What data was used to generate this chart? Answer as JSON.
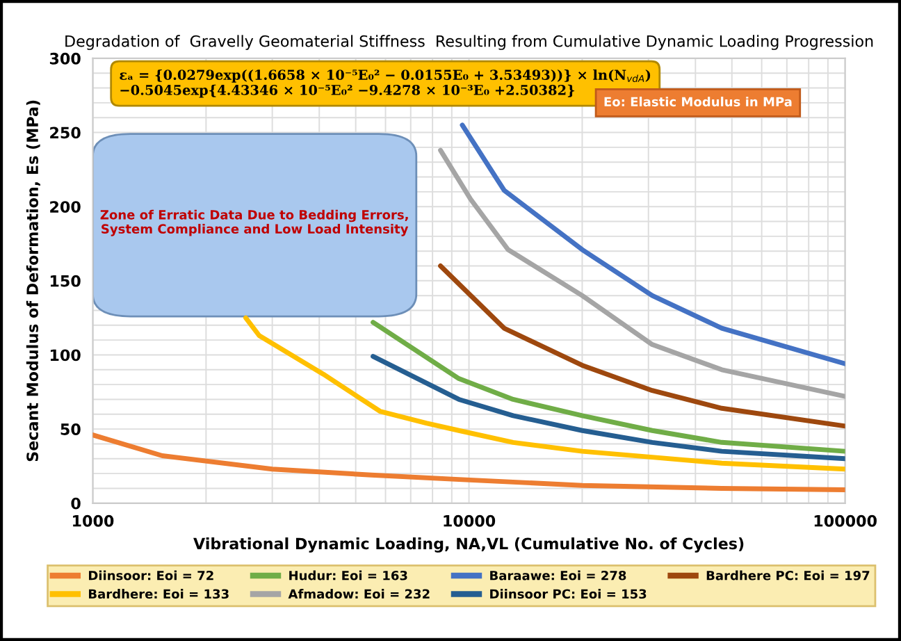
{
  "chart_data": {
    "type": "line",
    "title": "Degradation of  Gravelly Geomaterial Stiffness  Resulting from Cumulative Dynamic Loading Progression",
    "xlabel": "Vibrational Dynamic Loading, NA,VL (Cumulative No. of Cycles)",
    "ylabel": "Secant Modulus of Deformation, Es (MPa)",
    "log": "x",
    "xlim": [
      1000,
      100000
    ],
    "ylim": [
      0,
      300
    ],
    "xticks": [
      1000,
      {
        "value": 2000,
        "label": null
      },
      {
        "value": 3000,
        "label": null
      },
      {
        "value": 4000,
        "label": null
      },
      {
        "value": 5000,
        "label": null
      },
      {
        "value": 6000,
        "label": null
      },
      {
        "value": 7000,
        "label": null
      },
      {
        "value": 8000,
        "label": null
      },
      {
        "value": 9000,
        "label": null
      },
      10000,
      {
        "value": 20000,
        "label": null
      },
      {
        "value": 30000,
        "label": null
      },
      {
        "value": 40000,
        "label": null
      },
      {
        "value": 50000,
        "label": null
      },
      {
        "value": 60000,
        "label": null
      },
      {
        "value": 70000,
        "label": null
      },
      {
        "value": 80000,
        "label": null
      },
      {
        "value": 90000,
        "label": null
      },
      100000
    ],
    "yticks": [
      0,
      {
        "value": 10,
        "label": null
      },
      {
        "value": 20,
        "label": null
      },
      {
        "value": 30,
        "label": null
      },
      {
        "value": 40,
        "label": null
      },
      50,
      {
        "value": 60,
        "label": null
      },
      {
        "value": 70,
        "label": null
      },
      {
        "value": 80,
        "label": null
      },
      {
        "value": 90,
        "label": null
      },
      100,
      {
        "value": 110,
        "label": null
      },
      {
        "value": 120,
        "label": null
      },
      {
        "value": 130,
        "label": null
      },
      {
        "value": 140,
        "label": null
      },
      150,
      {
        "value": 160,
        "label": null
      },
      {
        "value": 170,
        "label": null
      },
      {
        "value": 180,
        "label": null
      },
      {
        "value": 190,
        "label": null
      },
      200,
      {
        "value": 210,
        "label": null
      },
      {
        "value": 220,
        "label": null
      },
      {
        "value": 230,
        "label": null
      },
      {
        "value": 240,
        "label": null
      },
      250,
      {
        "value": 260,
        "label": null
      },
      {
        "value": 270,
        "label": null
      },
      {
        "value": 280,
        "label": null
      },
      {
        "value": 290,
        "label": null
      },
      300
    ],
    "grid": true,
    "legend": "bottom",
    "marker": "none",
    "line_style": "solid",
    "series": [
      {
        "name": "Diinsoor: Eoi = 72",
        "color": "#ed7d31",
        "x": [
          1000,
          1530,
          3000,
          5500,
          9400,
          20000,
          47000,
          100000
        ],
        "values": [
          46,
          32,
          23,
          19,
          16,
          12,
          10,
          9
        ]
      },
      {
        "name": "Bardhere: Eoi = 133",
        "color": "#ffc000",
        "x": [
          2550,
          2770,
          4100,
          5800,
          7700,
          9400,
          13100,
          20000,
          30700,
          47000,
          100000
        ],
        "values": [
          125,
          113,
          87,
          62,
          54,
          49,
          41,
          35,
          31,
          27,
          23
        ]
      },
      {
        "name": "Hudur: Eoi = 163",
        "color": "#70ad47",
        "x": [
          5560,
          9400,
          13100,
          20000,
          30700,
          47000,
          100000
        ],
        "values": [
          122,
          84,
          70,
          59,
          49,
          41,
          35
        ]
      },
      {
        "name": "Afmadow: Eoi = 232",
        "color": "#a5a5a5",
        "x": [
          8400,
          10100,
          12700,
          20000,
          30700,
          47000,
          100000
        ],
        "values": [
          238,
          205,
          171,
          140,
          107,
          90,
          72
        ]
      },
      {
        "name": "Baraawe: Eoi = 278",
        "color": "#4472c4",
        "x": [
          9600,
          12400,
          20000,
          30700,
          47000,
          100000
        ],
        "values": [
          255,
          211,
          171,
          140,
          118,
          94
        ]
      },
      {
        "name": "Diinsoor PC: Eoi = 153",
        "color": "#255e91",
        "x": [
          5560,
          9400,
          13100,
          20000,
          30700,
          47000,
          100000
        ],
        "values": [
          99,
          70,
          59,
          49,
          41,
          35,
          30
        ]
      },
      {
        "name": "Bardhere PC: Eoi = 197",
        "color": "#9e480e",
        "x": [
          8400,
          12400,
          20000,
          30700,
          47000,
          100000
        ],
        "values": [
          160,
          118,
          93,
          76,
          64,
          52
        ]
      }
    ],
    "annotations": [
      "εₐ = {0.0279exp((1.6658 × 10⁻⁵E₀² − 0.0155E₀ + 3.53493))} × ln(N$_{vdA}$)\n−0.5045exp{4.43346 × 10⁻⁵E₀² −9.4278 × 10⁻³E₀ +2.50382}",
      "Eo: Elastic Modulus in MPa",
      "Zone of Erratic Data Due to Bedding Errors,\nSystem Compliance and Low Load Intensity"
    ]
  }
}
